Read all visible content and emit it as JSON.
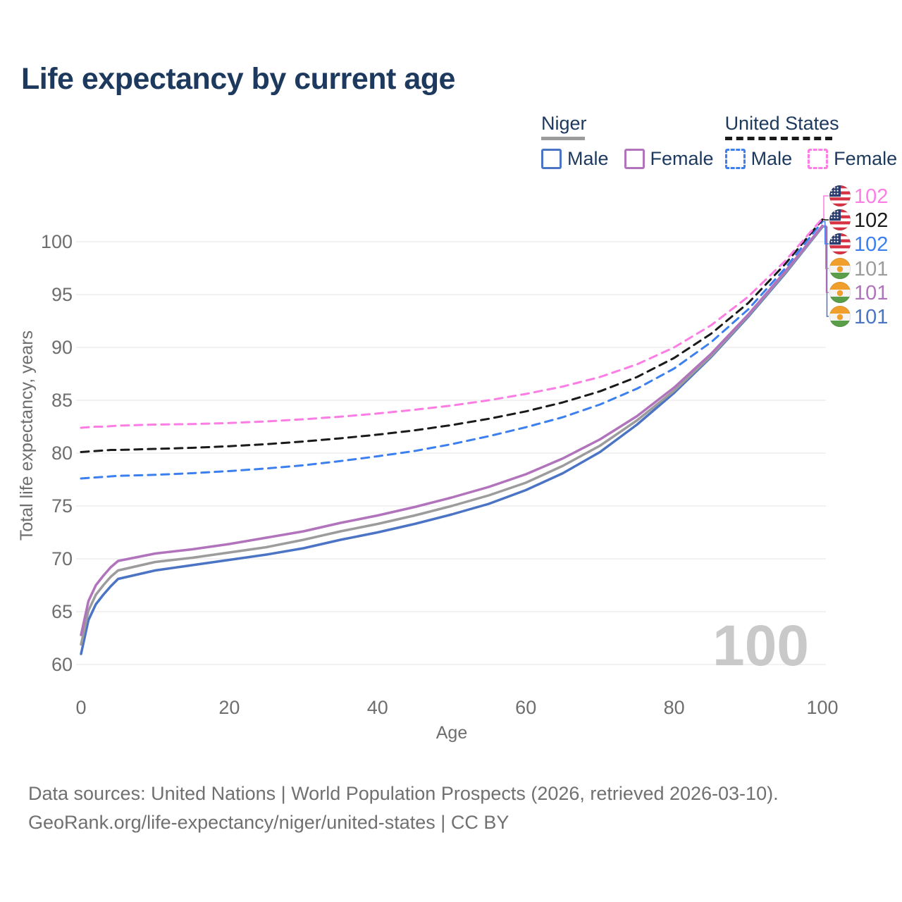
{
  "legend": {
    "niger": {
      "title": "Niger",
      "male": "Male",
      "female": "Female"
    },
    "us": {
      "title": "United States",
      "male": "Male",
      "female": "Female"
    }
  },
  "footer": {
    "line1": "Data sources: United Nations | World Population Prospects (2026, retrieved 2026-03-10).",
    "line2": "GeoRank.org/life-expectancy/niger/united-states | CC BY"
  },
  "colors": {
    "title_navy": "#1d3a5e",
    "niger_male": "#4b74c5",
    "niger_both": "#9c9c9c",
    "niger_female": "#b173bb",
    "us_male": "#3c80f0",
    "us_both": "#1a1a1a",
    "us_female": "#fc7de4",
    "grid": "#eaeaea",
    "axis_text": "#6e6e6e",
    "watermark": "#c9c9c9"
  },
  "chart_data": {
    "type": "line",
    "title": "Life expectancy by current age",
    "xlabel": "Age",
    "ylabel": "Total life expectancy, years",
    "x_ticks": [
      0,
      20,
      40,
      60,
      80,
      100
    ],
    "y_ticks": [
      60,
      65,
      70,
      75,
      80,
      85,
      90,
      95,
      100
    ],
    "xlim": [
      0,
      100
    ],
    "ylim": [
      60,
      102.5
    ],
    "grid": "horizontal",
    "legend_position": "top-right",
    "hover_age_readout": "100",
    "x": [
      0,
      1,
      2,
      3,
      4,
      5,
      10,
      15,
      20,
      25,
      30,
      35,
      40,
      45,
      50,
      55,
      60,
      65,
      70,
      75,
      80,
      85,
      90,
      95,
      100
    ],
    "series": [
      {
        "id": "niger-male",
        "name": "Niger Male",
        "country": "Niger",
        "sex": "male",
        "color": "#4b74c5",
        "dash": false,
        "flag": "niger",
        "end_label": "101",
        "label_slot": 5,
        "values": [
          61.0,
          64.2,
          65.7,
          66.6,
          67.4,
          68.1,
          68.9,
          69.4,
          69.9,
          70.4,
          71.0,
          71.8,
          72.5,
          73.3,
          74.2,
          75.2,
          76.5,
          78.1,
          80.1,
          82.7,
          85.7,
          89.1,
          92.9,
          97.0,
          101.4
        ]
      },
      {
        "id": "niger-both",
        "name": "Niger",
        "country": "Niger",
        "sex": "both",
        "color": "#9c9c9c",
        "dash": false,
        "flag": "niger",
        "end_label": "101",
        "label_slot": 3,
        "values": [
          61.9,
          65.1,
          66.6,
          67.5,
          68.3,
          68.9,
          69.7,
          70.1,
          70.6,
          71.1,
          71.8,
          72.6,
          73.3,
          74.1,
          75.0,
          76.0,
          77.2,
          78.8,
          80.7,
          83.1,
          85.9,
          89.2,
          93.0,
          97.1,
          101.45
        ]
      },
      {
        "id": "niger-female",
        "name": "Niger Female",
        "country": "Niger",
        "sex": "female",
        "color": "#b173bb",
        "dash": false,
        "flag": "niger",
        "end_label": "101",
        "label_slot": 4,
        "values": [
          62.8,
          66.0,
          67.5,
          68.4,
          69.2,
          69.8,
          70.5,
          70.9,
          71.4,
          72.0,
          72.6,
          73.4,
          74.1,
          74.9,
          75.8,
          76.8,
          78.0,
          79.5,
          81.3,
          83.5,
          86.2,
          89.4,
          93.1,
          97.2,
          101.5
        ]
      },
      {
        "id": "us-male",
        "name": "United States Male",
        "country": "United States",
        "sex": "male",
        "color": "#3c80f0",
        "dash": true,
        "flag": "us",
        "end_label": "102",
        "label_slot": 2,
        "values": [
          77.6,
          77.65,
          77.7,
          77.75,
          77.8,
          77.85,
          77.95,
          78.1,
          78.3,
          78.55,
          78.85,
          79.25,
          79.7,
          80.2,
          80.85,
          81.6,
          82.45,
          83.4,
          84.6,
          86.1,
          88.0,
          90.5,
          93.6,
          97.5,
          101.9
        ]
      },
      {
        "id": "us-both",
        "name": "United States",
        "country": "United States",
        "sex": "both",
        "color": "#1a1a1a",
        "dash": true,
        "flag": "us",
        "end_label": "102",
        "label_slot": 1,
        "values": [
          80.1,
          80.15,
          80.2,
          80.25,
          80.3,
          80.3,
          80.4,
          80.5,
          80.65,
          80.85,
          81.1,
          81.4,
          81.75,
          82.15,
          82.65,
          83.25,
          83.95,
          84.8,
          85.85,
          87.2,
          89.0,
          91.3,
          94.2,
          97.9,
          102.1
        ]
      },
      {
        "id": "us-female",
        "name": "United States Female",
        "country": "United States",
        "sex": "female",
        "color": "#fc7de4",
        "dash": true,
        "flag": "us",
        "end_label": "102",
        "label_slot": 0,
        "values": [
          82.4,
          82.45,
          82.5,
          82.5,
          82.55,
          82.6,
          82.7,
          82.75,
          82.85,
          83.0,
          83.2,
          83.45,
          83.75,
          84.1,
          84.5,
          85.0,
          85.6,
          86.3,
          87.2,
          88.4,
          90.0,
          92.1,
          94.8,
          98.2,
          102.2
        ]
      }
    ]
  }
}
